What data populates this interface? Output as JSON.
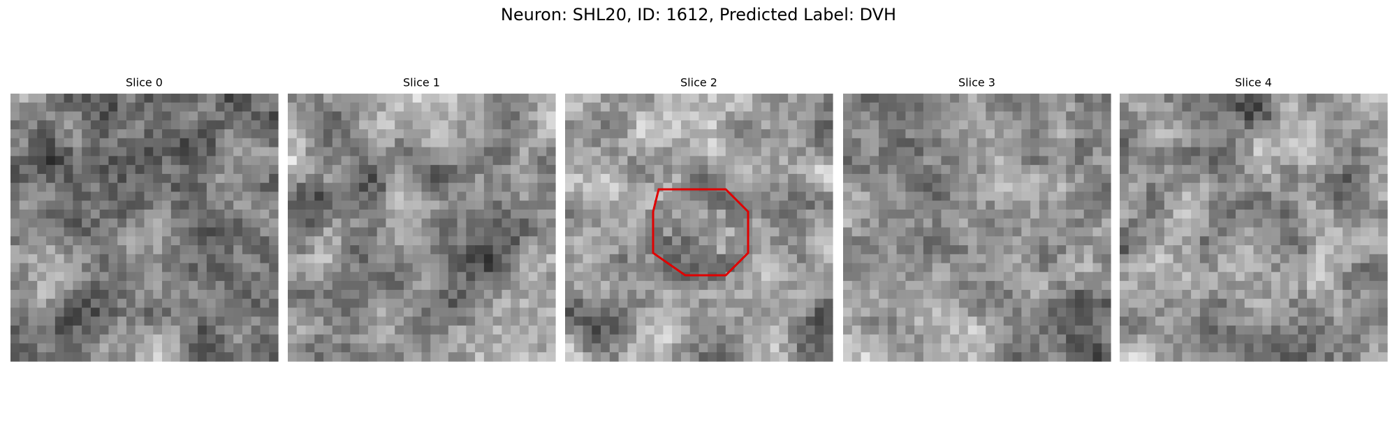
{
  "figure": {
    "title": "Neuron: SHL20, ID: 1612, Predicted Label: DVH",
    "panels": [
      {
        "title": "Slice 0"
      },
      {
        "title": "Slice 1"
      },
      {
        "title": "Slice 2"
      },
      {
        "title": "Slice 3"
      },
      {
        "title": "Slice 4"
      }
    ]
  }
}
